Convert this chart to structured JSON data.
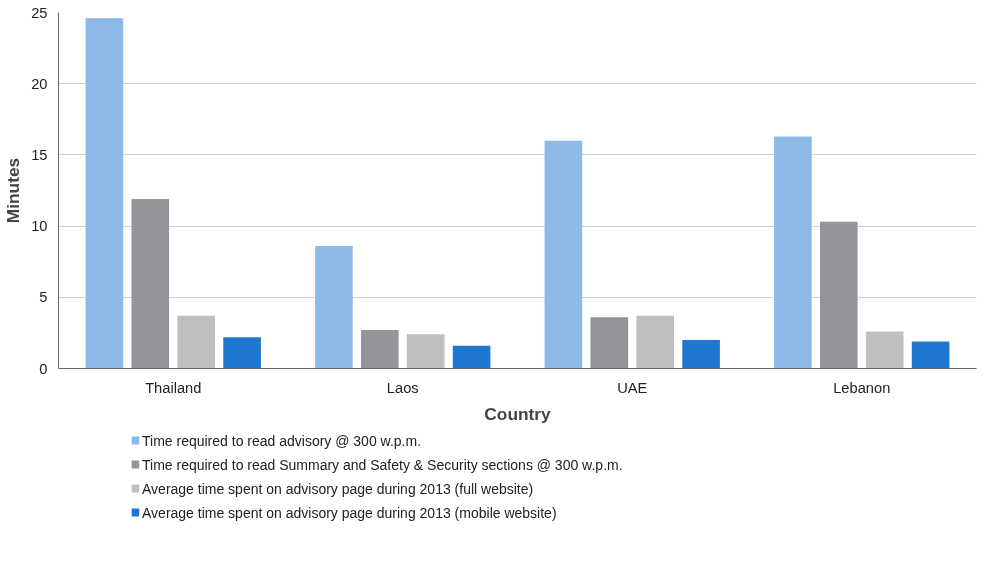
{
  "chart_data": {
    "type": "bar",
    "xlabel": "Country",
    "ylabel": "Minutes",
    "categories": [
      "Thailand",
      "Laos",
      "UAE",
      "Lebanon"
    ],
    "series": [
      {
        "name": "Time required to read advisory @ 300 w.p.m.",
        "color": "#8db9e6",
        "values": [
          24.6,
          8.6,
          16.0,
          16.3
        ]
      },
      {
        "name": "Time required to read Summary and Safety & Security sections @ 300 w.p.m.",
        "color": "#939598",
        "values": [
          11.9,
          2.7,
          3.6,
          10.3
        ]
      },
      {
        "name": "Average time spent on advisory page during 2013 (full website)",
        "color": "#bfbfc0",
        "values": [
          3.7,
          2.4,
          3.7,
          2.6
        ]
      },
      {
        "name": "Average time spent on advisory page during 2013 (mobile website)",
        "color": "#1e78d2",
        "values": [
          2.2,
          1.6,
          2.0,
          1.9
        ]
      }
    ],
    "ylim": [
      0,
      25
    ],
    "yticks": [
      0,
      5,
      10,
      15,
      20,
      25
    ],
    "grid": "y",
    "legend": "bottom"
  }
}
